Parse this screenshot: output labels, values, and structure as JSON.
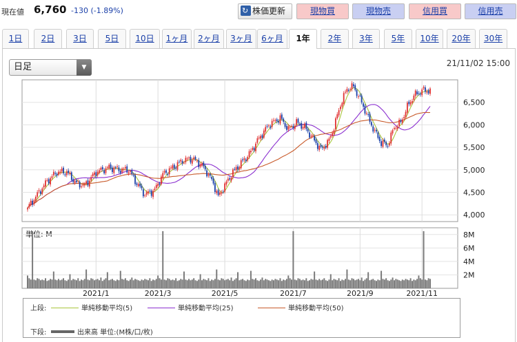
{
  "price": {
    "label": "現在値",
    "value": "6,760",
    "change": "-130 (-1.89%)"
  },
  "buttons": {
    "update": "株価更新",
    "buy_cash": "現物買",
    "sell_cash": "現物売",
    "buy_margin": "信用買",
    "sell_margin": "信用売"
  },
  "tabs": [
    {
      "label": "1日"
    },
    {
      "label": "2日"
    },
    {
      "label": "3日"
    },
    {
      "label": "5日"
    },
    {
      "label": "10日"
    },
    {
      "label": "1ヶ月"
    },
    {
      "label": "2ヶ月"
    },
    {
      "label": "3ヶ月"
    },
    {
      "label": "6ヶ月"
    },
    {
      "label": "1年",
      "active": true
    },
    {
      "label": "2年"
    },
    {
      "label": "3年"
    },
    {
      "label": "5年"
    },
    {
      "label": "10年"
    },
    {
      "label": "20年"
    },
    {
      "label": "30年"
    }
  ],
  "chart_type_select": {
    "value": "日足"
  },
  "timestamp": "21/11/02 15:00",
  "volume_unit_label": "単位: M",
  "legend": {
    "upper_label": "上段:",
    "lower_label": "下段:",
    "ma5": "単純移動平均(5)",
    "ma25": "単純移動平均(25)",
    "ma50": "単純移動平均(50)",
    "volume": "出来高 単位:(M株/口/枚)"
  },
  "colors": {
    "up_candle": "#e03030",
    "down_candle": "#1a40a8",
    "ma5": "#a8c43a",
    "ma25": "#8a2ecf",
    "ma50": "#c85a2a",
    "volume": "#7a7a7a"
  },
  "chart_data": {
    "type": "line",
    "price_axis": {
      "ticks": [
        "6,500",
        "6,000",
        "5,500",
        "5,000",
        "4,500",
        "4,000"
      ],
      "ylim": [
        3850,
        7000
      ]
    },
    "volume_axis": {
      "ticks": [
        "8M",
        "6M",
        "4M",
        "2M"
      ],
      "ylim": [
        0,
        9
      ]
    },
    "x_ticks": [
      "2021/1",
      "2021/3",
      "2021/5",
      "2021/7",
      "2021/9",
      "2021/11"
    ],
    "x_tick_index": [
      42,
      80,
      121,
      163,
      204,
      242
    ],
    "price_anchors": [
      [
        0,
        4150
      ],
      [
        5,
        4400
      ],
      [
        12,
        4750
      ],
      [
        18,
        4950
      ],
      [
        24,
        4950
      ],
      [
        30,
        4700
      ],
      [
        35,
        4650
      ],
      [
        42,
        4950
      ],
      [
        50,
        5050
      ],
      [
        57,
        5000
      ],
      [
        62,
        5000
      ],
      [
        67,
        4700
      ],
      [
        72,
        4450
      ],
      [
        78,
        4550
      ],
      [
        83,
        4900
      ],
      [
        89,
        5050
      ],
      [
        95,
        5200
      ],
      [
        101,
        5250
      ],
      [
        107,
        5100
      ],
      [
        110,
        4950
      ],
      [
        114,
        4700
      ],
      [
        117,
        4400
      ],
      [
        121,
        4650
      ],
      [
        126,
        4950
      ],
      [
        131,
        5150
      ],
      [
        136,
        5350
      ],
      [
        142,
        5700
      ],
      [
        148,
        6000
      ],
      [
        155,
        6150
      ],
      [
        160,
        5900
      ],
      [
        165,
        6050
      ],
      [
        170,
        5950
      ],
      [
        175,
        5700
      ],
      [
        180,
        5450
      ],
      [
        185,
        5650
      ],
      [
        188,
        5950
      ],
      [
        192,
        6450
      ],
      [
        196,
        6800
      ],
      [
        200,
        6850
      ],
      [
        205,
        6500
      ],
      [
        209,
        6150
      ],
      [
        213,
        5850
      ],
      [
        217,
        5600
      ],
      [
        221,
        5550
      ],
      [
        225,
        5950
      ],
      [
        229,
        6050
      ],
      [
        233,
        6400
      ],
      [
        237,
        6650
      ],
      [
        242,
        6760
      ]
    ],
    "volume_values": [
      1.9,
      1.5,
      1.3,
      8.5,
      1.3,
      1.2,
      1.5,
      1.4,
      1.2,
      1.3,
      1.2,
      1.5,
      1.1,
      1.2,
      1.4,
      1.3,
      2.5,
      1.3,
      1.2,
      1.4,
      1.2,
      1.3,
      1.5,
      1.2,
      1.1,
      1.3,
      2.1,
      1.2,
      1.4,
      1.3,
      1.2,
      1.5,
      1.1,
      1.3,
      1.2,
      1.4,
      2.8,
      1.3,
      1.2,
      1.5,
      1.4,
      1.2,
      1.3,
      1.4,
      1.2,
      1.6,
      1.1,
      1.3,
      1.5,
      2.4,
      1.2,
      1.3,
      1.4,
      1.2,
      1.1,
      1.3,
      1.2,
      2.6,
      1.4,
      1.3,
      1.5,
      1.2,
      1.1,
      1.3,
      1.6,
      1.2,
      1.4,
      1.3,
      1.2,
      1.1,
      1.3,
      1.2,
      1.4,
      1.3,
      1.2,
      1.5,
      1.1,
      1.3,
      1.2,
      1.4
    ],
    "ma_windows": [
      5,
      25,
      50
    ]
  }
}
